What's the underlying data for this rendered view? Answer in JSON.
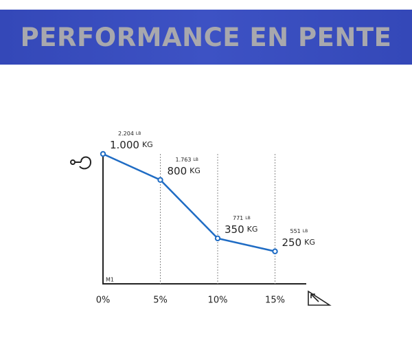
{
  "chart_data": {
    "type": "line",
    "title": "PERFORMANCE EN PENTE",
    "categories": [
      "0%",
      "5%",
      "10%",
      "15%"
    ],
    "values": [
      1000,
      800,
      350,
      250
    ],
    "value_labels": [
      "1.000",
      "800",
      "350",
      "250"
    ],
    "unit": "KG",
    "secondary_labels": [
      "2.204",
      "1.763",
      "771",
      "551"
    ],
    "secondary_unit": "LB",
    "annotation": "M1",
    "color": "#1f6cc4",
    "ylim": [
      0,
      1000
    ]
  }
}
